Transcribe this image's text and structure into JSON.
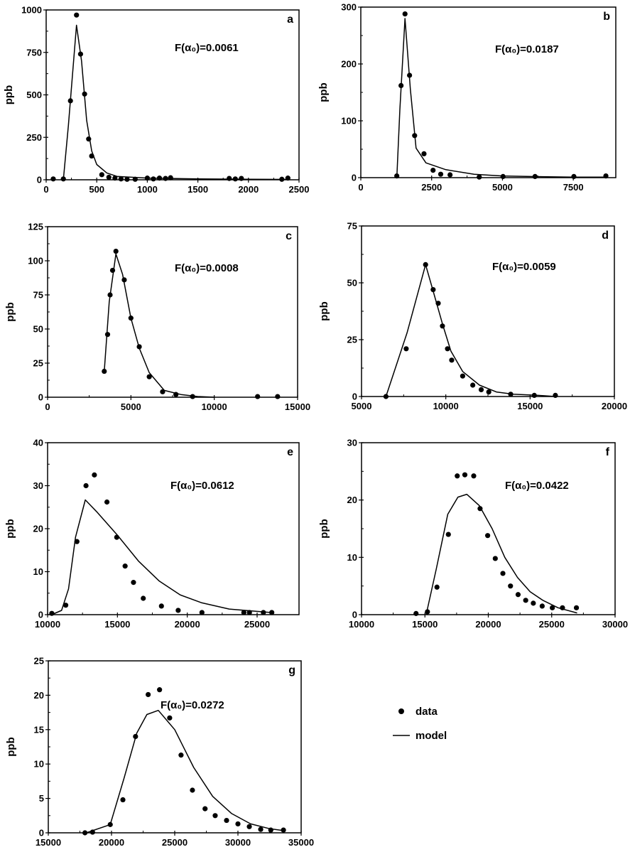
{
  "legend": {
    "data_label": "data",
    "model_label": "model"
  },
  "chart_data": [
    {
      "type": "scatter",
      "panel": "a",
      "annotation": "F(α₀)=0.0061",
      "ylabel": "ppb",
      "xlim": [
        0,
        2500
      ],
      "ylim": [
        0,
        1000
      ],
      "xticks": [
        0,
        500,
        1000,
        1500,
        2000,
        2500
      ],
      "yticks": [
        0,
        250,
        500,
        750,
        1000
      ],
      "series": [
        {
          "name": "data",
          "type": "scatter",
          "x": [
            70,
            170,
            240,
            300,
            340,
            380,
            420,
            450,
            550,
            620,
            680,
            740,
            800,
            880,
            1000,
            1060,
            1120,
            1180,
            1230,
            1810,
            1870,
            1930,
            2330,
            2390
          ],
          "y": [
            5,
            5,
            465,
            970,
            740,
            505,
            240,
            140,
            30,
            15,
            10,
            5,
            3,
            3,
            10,
            5,
            10,
            8,
            12,
            8,
            5,
            8,
            3,
            10
          ]
        },
        {
          "name": "model",
          "type": "line",
          "x": [
            170,
            220,
            300,
            350,
            400,
            450,
            500,
            600,
            700,
            1000,
            1500,
            2000,
            2400
          ],
          "y": [
            0,
            320,
            910,
            700,
            350,
            170,
            90,
            40,
            20,
            10,
            5,
            3,
            2
          ]
        }
      ]
    },
    {
      "type": "scatter",
      "panel": "b",
      "annotation": "F(α₀)=0.0187",
      "ylabel": "ppb",
      "xlim": [
        0,
        9000
      ],
      "ylim": [
        0,
        300
      ],
      "xticks": [
        0,
        2500,
        5000,
        7500
      ],
      "yticks": [
        0,
        100,
        200,
        300
      ],
      "series": [
        {
          "name": "data",
          "type": "scatter",
          "x": [
            1270,
            1420,
            1560,
            1720,
            1900,
            2230,
            2550,
            2820,
            3150,
            4180,
            5020,
            6150,
            7520,
            8650
          ],
          "y": [
            3,
            162,
            288,
            180,
            74,
            42,
            13,
            6,
            5,
            1,
            2,
            2,
            2,
            3
          ]
        },
        {
          "name": "model",
          "type": "line",
          "x": [
            1270,
            1380,
            1560,
            1750,
            1950,
            2300,
            3000,
            4000,
            5000,
            6000,
            7500,
            8650
          ],
          "y": [
            0,
            120,
            280,
            155,
            52,
            26,
            14,
            6,
            3,
            2,
            1,
            1
          ]
        }
      ]
    },
    {
      "type": "scatter",
      "panel": "c",
      "annotation": "F(α₀)=0.0008",
      "ylabel": "ppb",
      "xlim": [
        0,
        15000
      ],
      "ylim": [
        0,
        125
      ],
      "xticks": [
        0,
        5000,
        10000,
        15000
      ],
      "yticks": [
        0,
        25,
        50,
        75,
        100,
        125
      ],
      "series": [
        {
          "name": "data",
          "type": "scatter",
          "x": [
            3400,
            3600,
            3750,
            3900,
            4100,
            4600,
            5000,
            5500,
            6100,
            6900,
            7700,
            8700,
            12600,
            13800
          ],
          "y": [
            19,
            46,
            75,
            93,
            107,
            86,
            58,
            37,
            15,
            4,
            2,
            0.5,
            0.5,
            0.5
          ]
        },
        {
          "name": "model",
          "type": "line",
          "x": [
            3400,
            3700,
            4100,
            4500,
            5000,
            5500,
            6100,
            7000,
            8000,
            9000,
            10000
          ],
          "y": [
            19,
            70,
            105,
            90,
            58,
            36,
            18,
            5,
            2,
            0.5,
            0
          ]
        }
      ]
    },
    {
      "type": "scatter",
      "panel": "d",
      "annotation": "F(α₀)=0.0059",
      "ylabel": "ppb",
      "xlim": [
        5000,
        20000
      ],
      "ylim": [
        0,
        75
      ],
      "xticks": [
        5000,
        10000,
        15000,
        20000
      ],
      "yticks": [
        0,
        25,
        50,
        75
      ],
      "series": [
        {
          "name": "data",
          "type": "scatter",
          "x": [
            6450,
            7650,
            8800,
            9250,
            9550,
            9800,
            10100,
            10350,
            11000,
            11600,
            12100,
            12550,
            13850,
            15250,
            16500
          ],
          "y": [
            0,
            21,
            58,
            47,
            41,
            31,
            21,
            16,
            9,
            5,
            3,
            2,
            1,
            0.5,
            0.5
          ]
        },
        {
          "name": "model",
          "type": "line",
          "x": [
            6450,
            7700,
            8800,
            9300,
            9800,
            10300,
            11000,
            12000,
            13000,
            14000,
            15500,
            16500
          ],
          "y": [
            0,
            28,
            58,
            45,
            32,
            20,
            11,
            5,
            2,
            1,
            0.5,
            0
          ]
        }
      ]
    },
    {
      "type": "scatter",
      "panel": "e",
      "annotation": "F(α₀)=0.0612",
      "ylabel": "ppb",
      "xlim": [
        10000,
        28000
      ],
      "ylim": [
        0,
        40
      ],
      "xticks": [
        10000,
        15000,
        20000,
        25000
      ],
      "yticks": [
        0,
        10,
        20,
        30,
        40
      ],
      "series": [
        {
          "name": "data",
          "type": "scatter",
          "x": [
            10300,
            11300,
            12100,
            12750,
            13350,
            14250,
            14950,
            15550,
            16150,
            16850,
            18150,
            19350,
            21050,
            24050,
            24450,
            25450,
            26050
          ],
          "y": [
            0.3,
            2.2,
            17,
            30,
            32.5,
            26.2,
            18,
            11.3,
            7.5,
            3.8,
            2,
            1,
            0.5,
            0.5,
            0.5,
            0.5,
            0.5
          ]
        },
        {
          "name": "model",
          "type": "line",
          "x": [
            10300,
            11000,
            11500,
            12000,
            12700,
            13500,
            15000,
            16500,
            18000,
            19500,
            21000,
            23000,
            26000
          ],
          "y": [
            0,
            1,
            6,
            18,
            26.7,
            24,
            18.5,
            12.5,
            7.8,
            4.6,
            2.8,
            1.3,
            0.5
          ]
        }
      ]
    },
    {
      "type": "scatter",
      "panel": "f",
      "annotation": "F(α₀)=0.0422",
      "ylabel": "ppb",
      "xlim": [
        10000,
        30000
      ],
      "ylim": [
        0,
        30
      ],
      "xticks": [
        10000,
        15000,
        20000,
        25000,
        30000
      ],
      "yticks": [
        0,
        10,
        20,
        30
      ],
      "series": [
        {
          "name": "data",
          "type": "scatter",
          "x": [
            14300,
            15200,
            15950,
            16850,
            17550,
            18150,
            18850,
            19350,
            19950,
            20550,
            21150,
            21750,
            22350,
            22950,
            23550,
            24250,
            25050,
            25850,
            26950
          ],
          "y": [
            0.2,
            0.5,
            4.8,
            14,
            24.2,
            24.4,
            24.2,
            18.5,
            13.8,
            9.8,
            7.2,
            5,
            3.5,
            2.5,
            2,
            1.5,
            1.2,
            1.2,
            1.2
          ]
        },
        {
          "name": "model",
          "type": "line",
          "x": [
            15100,
            15900,
            16800,
            17600,
            18300,
            19300,
            20300,
            21300,
            22300,
            23300,
            24300,
            25500,
            27000
          ],
          "y": [
            0,
            8,
            17.5,
            20.5,
            21,
            19,
            15,
            10,
            6.5,
            4,
            2.5,
            1.2,
            0.3
          ]
        }
      ]
    },
    {
      "type": "scatter",
      "panel": "g",
      "annotation": "F(α₀)=0.0272",
      "ylabel": "ppb",
      "xlim": [
        15000,
        35000
      ],
      "ylim": [
        0,
        25
      ],
      "xticks": [
        15000,
        20000,
        25000,
        30000,
        35000
      ],
      "yticks": [
        0,
        5,
        10,
        15,
        20,
        25
      ],
      "series": [
        {
          "name": "data",
          "type": "scatter",
          "x": [
            17900,
            18500,
            19900,
            20900,
            21900,
            22900,
            23800,
            24600,
            25500,
            26400,
            27400,
            28200,
            29100,
            30000,
            30900,
            31800,
            32600,
            33600
          ],
          "y": [
            0,
            0.1,
            1.2,
            4.8,
            14,
            20.1,
            20.8,
            16.7,
            11.3,
            6.2,
            3.5,
            2.5,
            1.8,
            1.3,
            0.9,
            0.5,
            0.4,
            0.4
          ]
        },
        {
          "name": "model",
          "type": "line",
          "x": [
            18000,
            19900,
            21000,
            22000,
            22800,
            23700,
            25000,
            26500,
            28000,
            29500,
            31000,
            32500,
            33700
          ],
          "y": [
            0,
            1.2,
            8,
            14.5,
            17.2,
            17.8,
            15,
            9.5,
            5.3,
            2.8,
            1.3,
            0.6,
            0.3
          ]
        }
      ]
    }
  ]
}
